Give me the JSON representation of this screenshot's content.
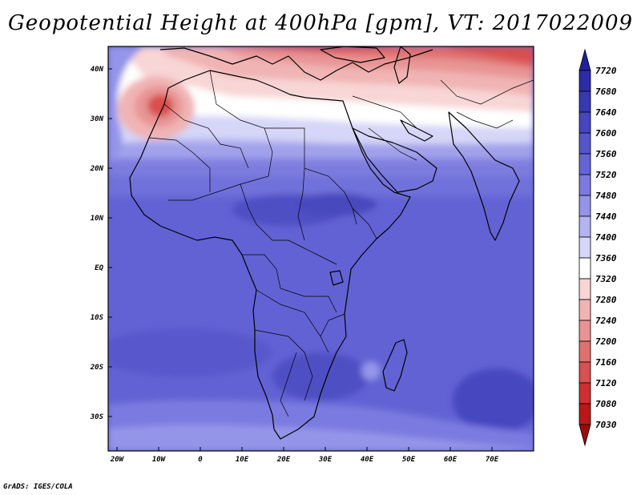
{
  "title": "Geopotential Height at 400hPa [gpm], VT: 2017022009",
  "credit": "GrADS: IGES/COLA",
  "map": {
    "lat_labels": [
      "40N",
      "30N",
      "20N",
      "10N",
      "EQ",
      "10S",
      "20S",
      "30S"
    ],
    "lon_labels": [
      "20W",
      "10W",
      "0",
      "10E",
      "20E",
      "30E",
      "40E",
      "50E",
      "60E",
      "70E"
    ],
    "extent": {
      "lon": [
        -22,
        80
      ],
      "lat": [
        -37,
        45
      ]
    }
  },
  "colorbar": {
    "levels": [
      7720,
      7680,
      7640,
      7600,
      7560,
      7520,
      7480,
      7440,
      7400,
      7360,
      7320,
      7280,
      7240,
      7200,
      7160,
      7120,
      7080,
      7030
    ],
    "colors": [
      "#20209a",
      "#2c2ca8",
      "#3838b4",
      "#4646c0",
      "#5555cc",
      "#6464d6",
      "#7a7ae0",
      "#9494e8",
      "#b4b4f0",
      "#d6d6f8",
      "#ffffff",
      "#f8d6d6",
      "#f0b4b4",
      "#e89494",
      "#e07070",
      "#d85050",
      "#cc3030",
      "#b81818",
      "#9a0c0c"
    ]
  }
}
